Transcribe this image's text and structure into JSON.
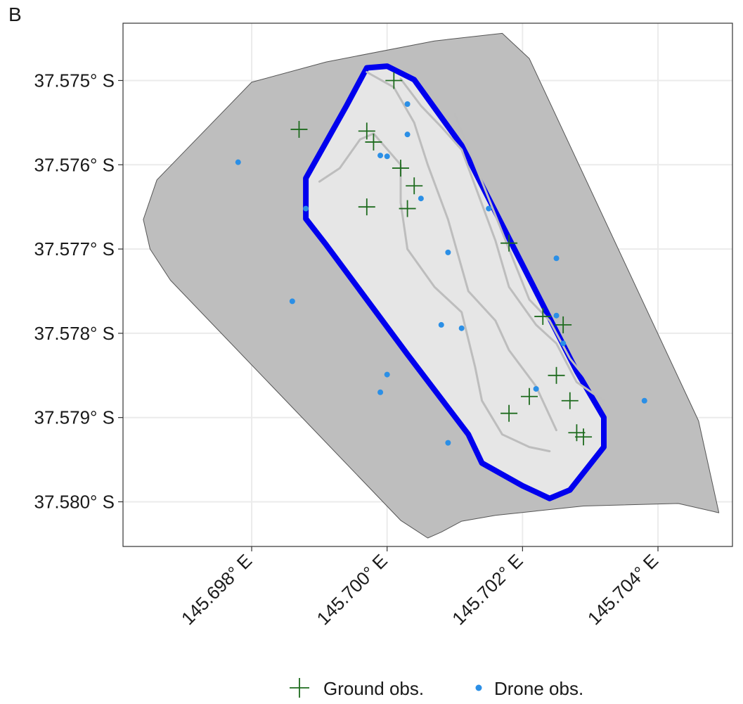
{
  "panel_label": "B",
  "x_axis": {
    "ticks": [
      {
        "value": 145.698,
        "label": "145.698° E"
      },
      {
        "value": 145.7,
        "label": "145.700° E"
      },
      {
        "value": 145.702,
        "label": "145.702° E"
      },
      {
        "value": 145.704,
        "label": "145.704° E"
      }
    ]
  },
  "y_axis": {
    "ticks": [
      {
        "value": -37.575,
        "label": "37.575° S"
      },
      {
        "value": -37.576,
        "label": "37.576° S"
      },
      {
        "value": -37.577,
        "label": "37.577° S"
      },
      {
        "value": -37.578,
        "label": "37.578° S"
      },
      {
        "value": -37.579,
        "label": "37.579° S"
      },
      {
        "value": -37.58,
        "label": "37.580° S"
      }
    ]
  },
  "legend": {
    "ground": "Ground obs.",
    "drone": "Drone obs."
  },
  "colors": {
    "ground": "#1e6b1e",
    "drone": "#2b8fe6",
    "boundary": "#0000ee",
    "inner_fill": "#e6e6e6",
    "outer_fill": "#bebebe",
    "track": "#bdbdbd",
    "grid": "#ebebeb"
  },
  "chart_data": {
    "type": "scatter",
    "xlim": [
      145.6961,
      145.7051
    ],
    "ylim": [
      -37.58053,
      -37.57432
    ],
    "outer_buffer": [
      [
        145.6991,
        -37.57478
      ],
      [
        145.7007,
        -37.57453
      ],
      [
        145.7017,
        -37.57444
      ],
      [
        145.7021,
        -37.57474
      ],
      [
        145.7046,
        -37.57904
      ],
      [
        145.7049,
        -37.58013
      ],
      [
        145.7043,
        -37.58002
      ],
      [
        145.7029,
        -37.58005
      ],
      [
        145.7016,
        -37.58016
      ],
      [
        145.7011,
        -37.58023
      ],
      [
        145.7008,
        -37.58036
      ],
      [
        145.7006,
        -37.58043
      ],
      [
        145.7002,
        -37.58022
      ],
      [
        145.6968,
        -37.57737
      ],
      [
        145.6965,
        -37.577
      ],
      [
        145.6964,
        -37.57665
      ],
      [
        145.6966,
        -37.57618
      ],
      [
        145.698,
        -37.57502
      ]
    ],
    "survey_boundary": [
      [
        145.7,
        -37.57483
      ],
      [
        145.7004,
        -37.57499
      ],
      [
        145.7011,
        -37.57577
      ],
      [
        145.7028,
        -37.57845
      ],
      [
        145.7032,
        -37.579
      ],
      [
        145.7032,
        -37.57935
      ],
      [
        145.7027,
        -37.57986
      ],
      [
        145.7024,
        -37.57996
      ],
      [
        145.702,
        -37.57981
      ],
      [
        145.7014,
        -37.57954
      ],
      [
        145.7012,
        -37.5792
      ],
      [
        145.7003,
        -37.57825
      ],
      [
        145.6991,
        -37.57695
      ],
      [
        145.6988,
        -37.57664
      ],
      [
        145.6988,
        -37.57616
      ],
      [
        145.6994,
        -37.5753
      ],
      [
        145.6997,
        -37.57485
      ]
    ],
    "tracks": [
      [
        [
          145.699,
          -37.5762
        ],
        [
          145.6993,
          -37.57604
        ],
        [
          145.6996,
          -37.5757
        ],
        [
          145.6998,
          -37.57563
        ],
        [
          145.7002,
          -37.576
        ],
        [
          145.7002,
          -37.57645
        ],
        [
          145.7003,
          -37.577
        ],
        [
          145.7007,
          -37.57745
        ],
        [
          145.7011,
          -37.57775
        ],
        [
          145.7013,
          -37.5784
        ],
        [
          145.7014,
          -37.5788
        ],
        [
          145.7017,
          -37.5792
        ],
        [
          145.7021,
          -37.57935
        ],
        [
          145.7024,
          -37.5794
        ]
      ],
      [
        [
          145.6997,
          -37.5749
        ],
        [
          145.7001,
          -37.57508
        ],
        [
          145.7004,
          -37.5755
        ],
        [
          145.7006,
          -37.576
        ],
        [
          145.7009,
          -37.57665
        ],
        [
          145.7012,
          -37.5775
        ],
        [
          145.7016,
          -37.57785
        ],
        [
          145.7018,
          -37.5782
        ],
        [
          145.7022,
          -37.57863
        ],
        [
          145.7025,
          -37.57915
        ]
      ],
      [
        [
          145.7002,
          -37.57498
        ],
        [
          145.7005,
          -37.5753
        ],
        [
          145.7008,
          -37.57555
        ],
        [
          145.7011,
          -37.57582
        ],
        [
          145.7013,
          -37.57625
        ],
        [
          145.7016,
          -37.5769
        ],
        [
          145.7018,
          -37.57745
        ],
        [
          145.7022,
          -37.5779
        ],
        [
          145.7025,
          -37.57812
        ],
        [
          145.7028,
          -37.57858
        ],
        [
          145.7032,
          -37.5788
        ]
      ],
      [
        [
          145.701,
          -37.5754
        ],
        [
          145.7014,
          -37.5762
        ],
        [
          145.7018,
          -37.577
        ],
        [
          145.7021,
          -37.5776
        ],
        [
          145.7024,
          -37.57785
        ],
        [
          145.7027,
          -37.5783
        ],
        [
          145.703,
          -37.5786
        ]
      ]
    ],
    "series": [
      {
        "name": "Ground obs.",
        "marker": "plus",
        "points": [
          [
            145.7001,
            -37.575
          ],
          [
            145.6987,
            -37.57558
          ],
          [
            145.6997,
            -37.5756
          ],
          [
            145.6998,
            -37.57573
          ],
          [
            145.7002,
            -37.57604
          ],
          [
            145.7004,
            -37.57625
          ],
          [
            145.6997,
            -37.5765
          ],
          [
            145.7003,
            -37.57652
          ],
          [
            145.7018,
            -37.57693
          ],
          [
            145.7023,
            -37.5778
          ],
          [
            145.7026,
            -37.5779
          ],
          [
            145.7025,
            -37.5785
          ],
          [
            145.7021,
            -37.57875
          ],
          [
            145.7027,
            -37.5788
          ],
          [
            145.7018,
            -37.57895
          ],
          [
            145.7028,
            -37.57918
          ],
          [
            145.7029,
            -37.57923
          ]
        ]
      },
      {
        "name": "Drone obs.",
        "marker": "dot",
        "points": [
          [
            145.7003,
            -37.57528
          ],
          [
            145.7003,
            -37.57564
          ],
          [
            145.6999,
            -37.57589
          ],
          [
            145.7,
            -37.5759
          ],
          [
            145.6978,
            -37.57597
          ],
          [
            145.7005,
            -37.5764
          ],
          [
            145.6988,
            -37.57652
          ],
          [
            145.7015,
            -37.57652
          ],
          [
            145.7009,
            -37.57704
          ],
          [
            145.7025,
            -37.57711
          ],
          [
            145.6986,
            -37.57762
          ],
          [
            145.7025,
            -37.57779
          ],
          [
            145.7008,
            -37.5779
          ],
          [
            145.7011,
            -37.57794
          ],
          [
            145.7026,
            -37.57812
          ],
          [
            145.7,
            -37.57849
          ],
          [
            145.7022,
            -37.57866
          ],
          [
            145.6999,
            -37.5787
          ],
          [
            145.7038,
            -37.5788
          ],
          [
            145.7009,
            -37.5793
          ]
        ]
      }
    ]
  }
}
